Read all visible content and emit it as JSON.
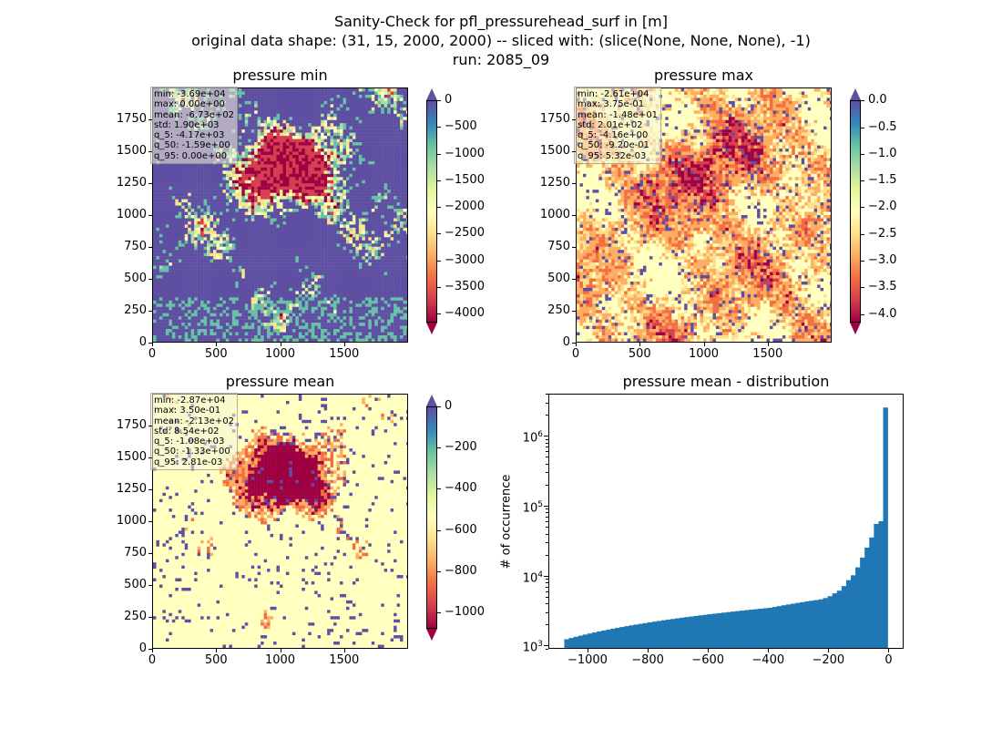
{
  "suptitle": {
    "line1": "Sanity-Check for pfl_pressurehead_surf in [m]",
    "line2": "original data shape: (31, 15, 2000, 2000) -- sliced with: (slice(None, None, None), -1)",
    "line3": "run: 2085_09"
  },
  "colors": {
    "spectral": [
      "#9e0142",
      "#d53e4f",
      "#f46d43",
      "#fdae61",
      "#fee08b",
      "#ffffbf",
      "#e6f598",
      "#abdda4",
      "#66c2a5",
      "#3288bd",
      "#5e4fa2"
    ],
    "hist_bar": "#1f77b4"
  },
  "chart_data": [
    {
      "type": "heatmap",
      "title": "pressure min",
      "x_ticks": [
        "0",
        "500",
        "1000",
        "1500"
      ],
      "y_ticks": [
        "0",
        "250",
        "500",
        "750",
        "1000",
        "1250",
        "1500",
        "1750"
      ],
      "colorbar": {
        "ticks": [
          "0",
          "−500",
          "−1000",
          "−1500",
          "−2000",
          "−2500",
          "−3000",
          "−3500",
          "−4000"
        ],
        "vmin": -4170,
        "vmax": 0,
        "extend": "both"
      },
      "stats": [
        "min: -3.69e+04",
        "max: 0.00e+00",
        "mean: -6.73e+02",
        "std: 1.90e+03",
        "q_5: -4.17e+03",
        "q_50: -1.59e+00",
        "q_95: 0.00e+00"
      ]
    },
    {
      "type": "heatmap",
      "title": "pressure max",
      "x_ticks": [
        "0",
        "500",
        "1000",
        "1500"
      ],
      "y_ticks": [
        "0",
        "250",
        "500",
        "750",
        "1000",
        "1250",
        "1500",
        "1750"
      ],
      "colorbar": {
        "ticks": [
          "0.0",
          "−0.5",
          "−1.0",
          "−1.5",
          "−2.0",
          "−2.5",
          "−3.0",
          "−3.5",
          "−4.0"
        ],
        "vmin": -4.16,
        "vmax": 0.0053,
        "extend": "both"
      },
      "stats": [
        "min: -2.61e+04",
        "max: 3.75e-01",
        "mean: -1.48e+01",
        "std: 2.01e+02",
        "q_5: -4.16e+00",
        "q_50: -9.20e-01",
        "q_95: 5.32e-03"
      ]
    },
    {
      "type": "heatmap",
      "title": "pressure mean",
      "x_ticks": [
        "0",
        "500",
        "1000",
        "1500"
      ],
      "y_ticks": [
        "0",
        "250",
        "500",
        "750",
        "1000",
        "1250",
        "1500",
        "1750"
      ],
      "colorbar": {
        "ticks": [
          "0",
          "−200",
          "−400",
          "−600",
          "−800",
          "−1000"
        ],
        "vmin": -1080,
        "vmax": 0.0028,
        "extend": "both"
      },
      "stats": [
        "min: -2.87e+04",
        "max: 3.50e-01",
        "mean: -2.13e+02",
        "std: 8.54e+02",
        "q_5: -1.08e+03",
        "q_50: -1.33e+00",
        "q_95: 2.81e-03"
      ]
    },
    {
      "type": "bar",
      "title": "pressure mean - distribution",
      "ylabel": "# of occurrence",
      "yscale": "log",
      "ylim": [
        900,
        4000000
      ],
      "xlim": [
        -1130,
        50
      ],
      "x_ticks": [
        "−1000",
        "−800",
        "−600",
        "−400",
        "−200",
        "0"
      ],
      "bin_range": [
        -1080,
        0
      ],
      "counts": [
        1200,
        1250,
        1300,
        1350,
        1400,
        1450,
        1500,
        1550,
        1600,
        1650,
        1700,
        1750,
        1800,
        1850,
        1900,
        1950,
        2000,
        2050,
        2100,
        2150,
        2200,
        2250,
        2300,
        2350,
        2400,
        2450,
        2500,
        2550,
        2600,
        2650,
        2700,
        2750,
        2800,
        2850,
        2900,
        2950,
        3000,
        3050,
        3100,
        3150,
        3200,
        3250,
        3300,
        3350,
        3400,
        3500,
        3600,
        3700,
        3800,
        3900,
        4000,
        4100,
        4200,
        4300,
        4400,
        4500,
        4700,
        5000,
        5500,
        6000,
        7000,
        8500,
        10000,
        13000,
        18000,
        25000,
        35000,
        55000,
        60000,
        2600000
      ]
    }
  ]
}
